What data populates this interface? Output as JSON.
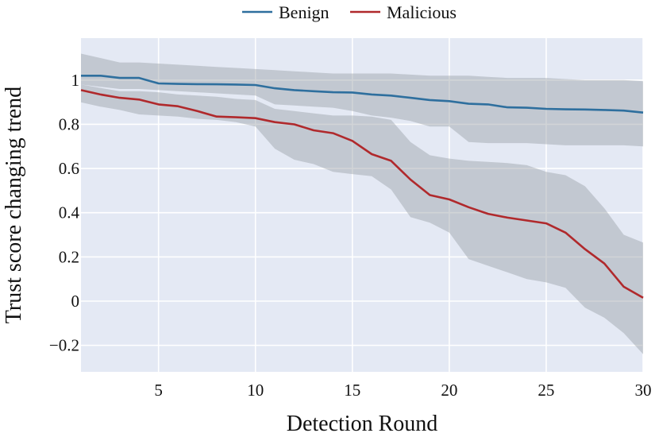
{
  "chart_data": {
    "type": "line",
    "xlabel": "Detection Round",
    "ylabel": "Trust score changing trend",
    "xlim": [
      1,
      30
    ],
    "ylim": [
      -0.32,
      1.19
    ],
    "xticks": [
      5,
      10,
      15,
      20,
      25,
      30
    ],
    "yticks": [
      -0.2,
      0,
      0.2,
      0.4,
      0.6,
      0.8,
      1
    ],
    "ytick_labels": [
      "−0.2",
      "0",
      "0.2",
      "0.4",
      "0.6",
      "0.8",
      "1"
    ],
    "grid": true,
    "legend_position": "top-center",
    "x": [
      1,
      2,
      3,
      4,
      5,
      6,
      7,
      8,
      9,
      10,
      11,
      12,
      13,
      14,
      15,
      16,
      17,
      18,
      19,
      20,
      21,
      22,
      23,
      24,
      25,
      26,
      27,
      28,
      29,
      30
    ],
    "series": [
      {
        "name": "Benign",
        "color": "#2e6f9e",
        "values": [
          1.02,
          1.02,
          1.01,
          1.01,
          0.985,
          0.983,
          0.982,
          0.981,
          0.98,
          0.978,
          0.963,
          0.955,
          0.95,
          0.945,
          0.944,
          0.935,
          0.93,
          0.92,
          0.91,
          0.905,
          0.893,
          0.89,
          0.877,
          0.875,
          0.87,
          0.868,
          0.867,
          0.865,
          0.862,
          0.853
        ],
        "upper": [
          1.12,
          1.1,
          1.08,
          1.08,
          1.075,
          1.07,
          1.065,
          1.06,
          1.055,
          1.05,
          1.045,
          1.04,
          1.035,
          1.03,
          1.03,
          1.03,
          1.03,
          1.025,
          1.02,
          1.02,
          1.02,
          1.015,
          1.01,
          1.01,
          1.01,
          1.005,
          1.0,
          1.0,
          1.0,
          0.995
        ],
        "lower": [
          0.98,
          0.97,
          0.96,
          0.96,
          0.955,
          0.95,
          0.945,
          0.94,
          0.935,
          0.93,
          0.89,
          0.885,
          0.88,
          0.875,
          0.86,
          0.84,
          0.83,
          0.815,
          0.79,
          0.79,
          0.72,
          0.715,
          0.715,
          0.715,
          0.71,
          0.705,
          0.705,
          0.705,
          0.705,
          0.7
        ]
      },
      {
        "name": "Malicious",
        "color": "#b0292c",
        "values": [
          0.955,
          0.935,
          0.92,
          0.912,
          0.89,
          0.882,
          0.86,
          0.835,
          0.832,
          0.828,
          0.81,
          0.8,
          0.773,
          0.76,
          0.725,
          0.665,
          0.635,
          0.55,
          0.48,
          0.46,
          0.425,
          0.395,
          0.378,
          0.365,
          0.352,
          0.31,
          0.235,
          0.17,
          0.065,
          0.015
        ],
        "upper": [
          0.98,
          0.965,
          0.95,
          0.95,
          0.945,
          0.935,
          0.93,
          0.925,
          0.915,
          0.91,
          0.87,
          0.86,
          0.85,
          0.84,
          0.84,
          0.835,
          0.82,
          0.72,
          0.66,
          0.645,
          0.635,
          0.63,
          0.625,
          0.615,
          0.585,
          0.57,
          0.52,
          0.42,
          0.3,
          0.265
        ],
        "lower": [
          0.9,
          0.88,
          0.865,
          0.845,
          0.84,
          0.835,
          0.825,
          0.82,
          0.81,
          0.79,
          0.69,
          0.64,
          0.62,
          0.585,
          0.575,
          0.565,
          0.505,
          0.38,
          0.355,
          0.31,
          0.19,
          0.16,
          0.13,
          0.1,
          0.085,
          0.06,
          -0.03,
          -0.075,
          -0.145,
          -0.24
        ]
      }
    ]
  }
}
